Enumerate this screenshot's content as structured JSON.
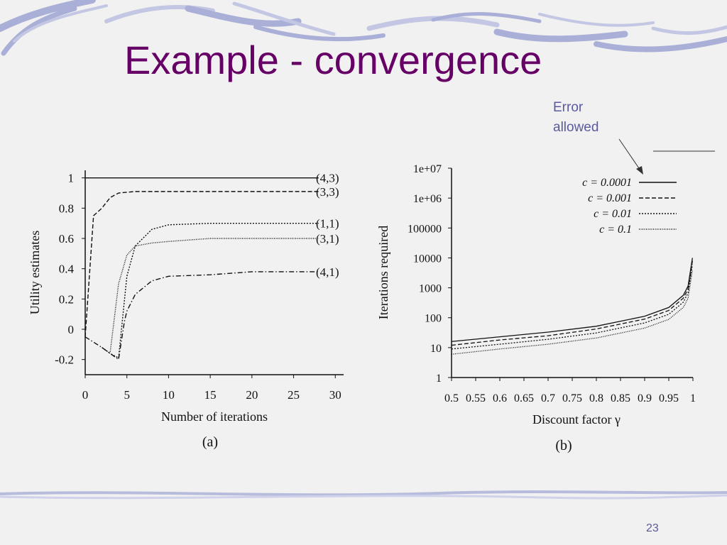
{
  "slide": {
    "title": "Example - convergence",
    "annotation_line1": "Error",
    "annotation_line2": "allowed",
    "slide_number": "23",
    "colors": {
      "title": "#660066",
      "annotation": "#5a5aa0",
      "wave": "#a9afd6"
    }
  },
  "chart_data": [
    {
      "type": "line",
      "caption": "(a)",
      "xlabel": "Number of iterations",
      "ylabel": "Utility estimates",
      "xlim": [
        0,
        31
      ],
      "ylim": [
        -0.3,
        1.05
      ],
      "xticks": [
        "0",
        "5",
        "10",
        "15",
        "20",
        "25",
        "30"
      ],
      "yticks": [
        "1",
        "0.8",
        "0.6",
        "0.4",
        "0.2",
        "0",
        "-0.2"
      ],
      "series": [
        {
          "name": "(4,3)",
          "dash": "solid",
          "x": [
            0,
            28
          ],
          "y": [
            1,
            1
          ]
        },
        {
          "name": "(3,3)",
          "dash": "dashed",
          "x": [
            0,
            1,
            2,
            3,
            4,
            6,
            10,
            28
          ],
          "y": [
            -0.05,
            0.75,
            0.8,
            0.87,
            0.9,
            0.91,
            0.91,
            0.91
          ]
        },
        {
          "name": "(1,1)",
          "dash": "dotted",
          "x": [
            2,
            3,
            4,
            5,
            6,
            8,
            10,
            15,
            28
          ],
          "y": [
            -0.12,
            -0.16,
            -0.19,
            0.35,
            0.55,
            0.66,
            0.69,
            0.7,
            0.7
          ]
        },
        {
          "name": "(3,1)",
          "dash": "fine",
          "x": [
            3,
            4,
            5,
            6,
            8,
            10,
            15,
            28
          ],
          "y": [
            -0.15,
            0.3,
            0.49,
            0.55,
            0.57,
            0.58,
            0.6,
            0.6
          ]
        },
        {
          "name": "(4,1)",
          "dash": "dashdot",
          "x": [
            0,
            2,
            3,
            4,
            4.7,
            5,
            6,
            8,
            10,
            15,
            20,
            28
          ],
          "y": [
            -0.05,
            -0.12,
            -0.16,
            -0.2,
            0.05,
            0.12,
            0.23,
            0.32,
            0.35,
            0.36,
            0.38,
            0.38
          ]
        }
      ]
    },
    {
      "type": "line",
      "caption": "(b)",
      "xlabel": "Discount factor γ",
      "ylabel": "Iterations required",
      "xlim": [
        0.5,
        1.0
      ],
      "ylim": [
        1,
        10000000
      ],
      "yscale": "log",
      "xticks": [
        "0.5",
        "0.55",
        "0.6",
        "0.65",
        "0.7",
        "0.75",
        "0.8",
        "0.85",
        "0.9",
        "0.95",
        "1"
      ],
      "yticks": [
        "1e+07",
        "1e+06",
        "100000",
        "10000",
        "1000",
        "100",
        "10",
        "1"
      ],
      "legend_position": "top-right",
      "series": [
        {
          "name": "c = 0.0001",
          "dash": "solid",
          "x": [
            0.5,
            0.6,
            0.7,
            0.8,
            0.9,
            0.95,
            0.98,
            0.99,
            0.999
          ],
          "y": [
            16,
            23,
            33,
            52,
            112,
            220,
            560,
            1145,
            10000
          ]
        },
        {
          "name": "c = 0.001",
          "dash": "dashed",
          "x": [
            0.5,
            0.6,
            0.7,
            0.8,
            0.9,
            0.95,
            0.98,
            0.99,
            0.999
          ],
          "y": [
            12,
            18,
            25,
            42,
            90,
            175,
            450,
            910,
            8000
          ]
        },
        {
          "name": "c = 0.01",
          "dash": "dotted",
          "x": [
            0.5,
            0.6,
            0.7,
            0.8,
            0.9,
            0.95,
            0.98,
            0.99,
            0.999
          ],
          "y": [
            9,
            13,
            19,
            31,
            67,
            130,
            330,
            680,
            6000
          ]
        },
        {
          "name": "c = 0.1",
          "dash": "fine",
          "x": [
            0.5,
            0.6,
            0.7,
            0.8,
            0.9,
            0.95,
            0.98,
            0.99,
            0.999
          ],
          "y": [
            6,
            9,
            13,
            21,
            45,
            88,
            220,
            450,
            4000
          ]
        }
      ]
    }
  ]
}
